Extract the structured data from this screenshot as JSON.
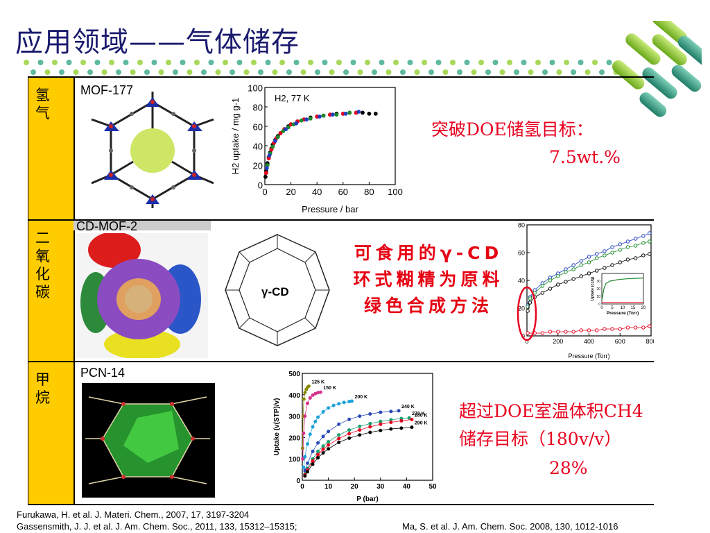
{
  "slide": {
    "title": "应用领域——气体储存"
  },
  "rows": [
    {
      "label": "氢气",
      "material": "MOF-177",
      "note_line1": "突破DOE储氢目标：",
      "note_line2": "7.5wt.%",
      "chart_title": "H2, 77 K",
      "xlabel": "Pressure / bar",
      "ylabel": "H2 uptake / mg g-1"
    },
    {
      "label": "二氧化碳",
      "material": "CD-MOF-2",
      "molecule_label": "γ-CD",
      "note_line1": "可食用的γ-CD",
      "note_line2": "环式糊精为原料",
      "note_line3": "绿色合成方法",
      "xlabel": "Pressure (Torr)",
      "inset_xlabel": "Pressure (Torr)",
      "inset_ylabel": "Uptake (cc/g)"
    },
    {
      "label": "甲烷",
      "material": "PCN-14",
      "note_line1": "超过DOE室温体积CH4",
      "note_line2": "储存目标（180v/v）",
      "note_line3": "28%",
      "xlabel": "P (bar)",
      "ylabel": "Uptake (v(STP)/v)"
    }
  ],
  "references": {
    "line1": "Furukawa, H. et al. J. Materi. Chem., 2007, 17, 3197-3204",
    "line2": "Gassensmith, J. J. et al. J. Am. Chem. Soc., 2011, 133, 15312–15315;",
    "line3": "Ma, S. et al. J. Am. Chem. Soc. 2008, 130, 1012-1016"
  },
  "chart_data": [
    {
      "type": "scatter",
      "title": "H2, 77 K",
      "xlabel": "Pressure / bar",
      "ylabel": "H2 uptake / mg g-1",
      "xlim": [
        0,
        100
      ],
      "ylim": [
        0,
        100
      ],
      "xticks": [
        0,
        20,
        40,
        60,
        80,
        100
      ],
      "yticks": [
        0,
        20,
        40,
        60,
        80,
        100
      ],
      "series": [
        {
          "color": "#000000",
          "x": [
            0.5,
            1,
            2,
            3,
            4,
            5,
            6,
            8,
            10,
            12,
            15,
            18,
            20,
            25,
            30,
            35,
            40,
            45,
            50,
            55,
            60,
            65,
            70,
            75,
            80,
            85
          ],
          "y": [
            8,
            14,
            22,
            28,
            33,
            37,
            41,
            46,
            50,
            53,
            57,
            60,
            62,
            65,
            67,
            69,
            70,
            71,
            72,
            73,
            73,
            74,
            74,
            74,
            73,
            73
          ]
        },
        {
          "color": "#e8001e",
          "x": [
            1,
            3,
            5,
            7,
            9,
            12,
            15,
            20,
            25,
            30,
            40,
            50,
            60,
            70
          ],
          "y": [
            12,
            27,
            36,
            43,
            48,
            53,
            57,
            62,
            65,
            67,
            70,
            72,
            73,
            74
          ]
        },
        {
          "color": "#1a8a2a",
          "x": [
            2,
            4,
            6,
            10,
            14,
            18,
            22,
            28,
            35,
            45,
            55,
            65
          ],
          "y": [
            20,
            32,
            39,
            49,
            55,
            59,
            62,
            66,
            68,
            71,
            72,
            74
          ]
        },
        {
          "color": "#1f3fbf",
          "x": [
            1.5,
            3.5,
            8,
            16,
            24,
            32,
            42,
            52,
            62,
            72
          ],
          "y": [
            17,
            30,
            45,
            57,
            63,
            67,
            70,
            72,
            73,
            75
          ]
        }
      ]
    },
    {
      "type": "scatter",
      "xlabel": "Pressure (Torr)",
      "xlim": [
        0,
        800
      ],
      "ylim": [
        0,
        80
      ],
      "xticks": [
        0,
        200,
        400,
        600,
        800
      ],
      "yticks": [
        0,
        20,
        40,
        60,
        80
      ],
      "series": [
        {
          "color": "#1f3fbf",
          "x": [
            5,
            20,
            50,
            100,
            150,
            200,
            250,
            300,
            350,
            400,
            450,
            500,
            550,
            600,
            650,
            700,
            750,
            790
          ],
          "y": [
            22,
            28,
            33,
            38,
            42,
            45,
            48,
            51,
            54,
            57,
            59,
            61,
            64,
            66,
            68,
            70,
            72,
            74
          ]
        },
        {
          "color": "#1a8a2a",
          "x": [
            5,
            20,
            50,
            100,
            150,
            200,
            250,
            300,
            350,
            400,
            450,
            500,
            550,
            600,
            650,
            700,
            750,
            790
          ],
          "y": [
            21,
            27,
            31,
            36,
            40,
            43,
            46,
            48,
            51,
            53,
            56,
            58,
            60,
            62,
            64,
            65,
            67,
            68
          ]
        },
        {
          "color": "#000000",
          "x": [
            5,
            20,
            50,
            100,
            150,
            200,
            250,
            300,
            350,
            400,
            450,
            500,
            550,
            600,
            650,
            700,
            750,
            790
          ],
          "y": [
            18,
            24,
            28,
            31,
            34,
            37,
            39,
            41,
            43,
            45,
            47,
            49,
            51,
            53,
            55,
            56,
            58,
            59
          ]
        },
        {
          "color": "#e8001e",
          "x": [
            5,
            50,
            100,
            150,
            200,
            250,
            300,
            350,
            400,
            450,
            500,
            550,
            600,
            650,
            700,
            750,
            790
          ],
          "y": [
            2,
            2,
            2,
            3,
            3,
            3,
            3,
            4,
            4,
            4,
            5,
            5,
            5,
            6,
            6,
            6,
            7
          ]
        }
      ]
    },
    {
      "type": "scatter",
      "xlabel": "P (bar)",
      "ylabel": "Uptake (v(STP)/v)",
      "xlim": [
        0,
        50
      ],
      "ylim": [
        0,
        500
      ],
      "xticks": [
        0,
        10,
        20,
        30,
        40,
        50
      ],
      "yticks": [
        0,
        100,
        200,
        300,
        400,
        500
      ],
      "series": [
        {
          "name": "125 K",
          "color": "#8a8a00",
          "x": [
            0.1,
            0.3,
            0.6,
            1,
            1.5,
            2,
            2.5
          ],
          "y": [
            150,
            300,
            380,
            410,
            425,
            435,
            440
          ]
        },
        {
          "name": "150 K",
          "color": "#d4308a",
          "x": [
            0.2,
            0.5,
            1,
            2,
            3,
            4,
            5,
            6,
            7
          ],
          "y": [
            100,
            220,
            300,
            360,
            385,
            398,
            405,
            410,
            412
          ]
        },
        {
          "name": "200 K",
          "color": "#1aa0d8",
          "x": [
            0.5,
            1,
            2,
            3,
            4,
            5,
            6,
            8,
            10,
            12,
            14,
            16,
            18,
            19
          ],
          "y": [
            60,
            110,
            170,
            215,
            250,
            275,
            295,
            320,
            338,
            350,
            358,
            364,
            368,
            370
          ]
        },
        {
          "name": "240 K",
          "color": "#2a48b8",
          "x": [
            1,
            2,
            4,
            6,
            8,
            10,
            14,
            18,
            22,
            26,
            30,
            34,
            37
          ],
          "y": [
            45,
            80,
            135,
            175,
            205,
            228,
            262,
            285,
            300,
            310,
            318,
            322,
            325
          ]
        },
        {
          "name": "270 K",
          "color": "#18a070",
          "x": [
            1,
            2,
            4,
            6,
            8,
            10,
            14,
            18,
            22,
            26,
            30,
            34,
            38,
            41
          ],
          "y": [
            30,
            55,
            100,
            135,
            160,
            180,
            212,
            235,
            252,
            265,
            275,
            283,
            289,
            292
          ]
        },
        {
          "name": "280 K",
          "color": "#e8001e",
          "x": [
            1,
            2,
            4,
            6,
            8,
            10,
            14,
            18,
            22,
            26,
            30,
            34,
            38,
            42
          ],
          "y": [
            25,
            48,
            90,
            120,
            145,
            165,
            195,
            218,
            235,
            250,
            262,
            271,
            278,
            284
          ]
        },
        {
          "name": "290 K",
          "color": "#000000",
          "x": [
            1,
            2,
            4,
            6,
            8,
            10,
            14,
            18,
            22,
            26,
            30,
            34,
            38,
            42
          ],
          "y": [
            20,
            40,
            75,
            105,
            128,
            147,
            177,
            197,
            212,
            224,
            233,
            240,
            244,
            248
          ]
        }
      ]
    }
  ]
}
